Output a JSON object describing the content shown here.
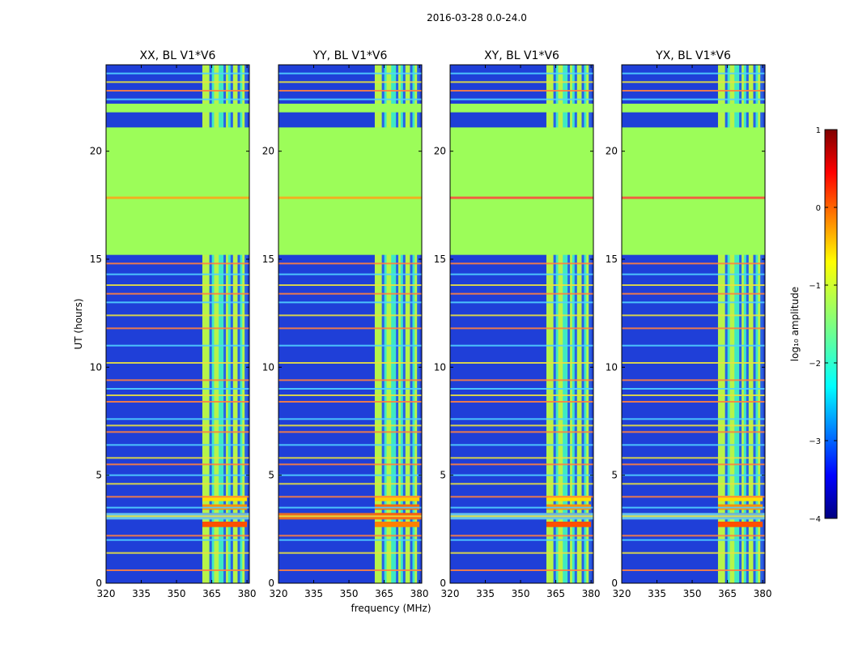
{
  "suptitle": "2016-03-28 0.0-24.0",
  "xlabel": "frequency (MHz)",
  "ylabel": "UT (hours)",
  "chart_data": {
    "type": "heatmap",
    "x_range": [
      320,
      381
    ],
    "y_range": [
      0,
      24
    ],
    "xticks": [
      320,
      335,
      350,
      365,
      380
    ],
    "yticks": [
      0,
      5,
      10,
      15,
      20
    ],
    "xtick_labels": [
      "320",
      "335",
      "350",
      "365",
      "380"
    ],
    "ytick_labels": [
      "0",
      "5",
      "10",
      "15",
      "20"
    ],
    "panels": [
      {
        "title": "XX, BL V1*V6",
        "pol": "XX"
      },
      {
        "title": "YY, BL V1*V6",
        "pol": "YY"
      },
      {
        "title": "XY, BL V1*V6",
        "pol": "XY"
      },
      {
        "title": "YX, BL V1*V6",
        "pol": "YX"
      }
    ],
    "flagged_interval_hours": [
      15.2,
      21.1
    ],
    "flag_value_log10": -1.0,
    "rfi_band_mhz": [
      361,
      380
    ],
    "colorbar": {
      "label": "log₁₀ amplitude",
      "range": [
        -4,
        1
      ],
      "ticks": [
        1,
        0,
        -1,
        -2,
        -3,
        -4
      ],
      "tick_labels": [
        "1",
        "0",
        "−1",
        "−2",
        "−3",
        "−4"
      ],
      "colormap": "jet"
    }
  },
  "colors": {
    "flag": "#9cfd59",
    "low": "#1f3fd8",
    "rfi": "#e0e040"
  }
}
